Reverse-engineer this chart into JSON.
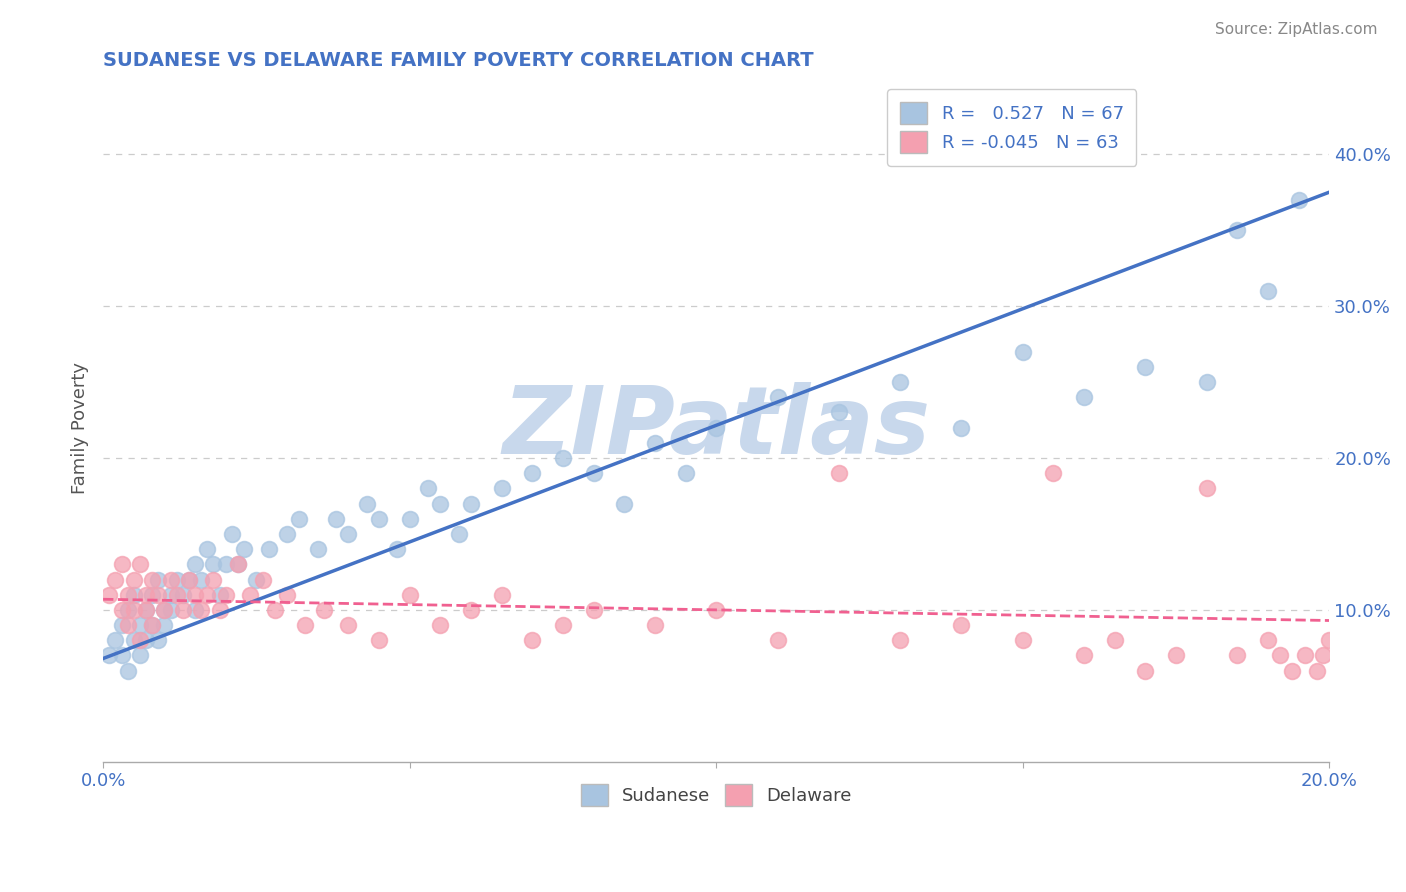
{
  "title": "SUDANESE VS DELAWARE FAMILY POVERTY CORRELATION CHART",
  "source_text": "Source: ZipAtlas.com",
  "ylabel": "Family Poverty",
  "watermark": "ZIPatlas",
  "x_min": 0.0,
  "x_max": 0.2,
  "y_min": 0.0,
  "y_max": 0.44,
  "y_ticks_right": [
    0.1,
    0.2,
    0.3,
    0.4
  ],
  "y_tick_labels_right": [
    "10.0%",
    "20.0%",
    "30.0%",
    "40.0%"
  ],
  "sudanese_color": "#a8c4e0",
  "delaware_color": "#f4a0b0",
  "sudanese_line_color": "#4472c4",
  "delaware_line_color": "#f06090",
  "sudanese_R": 0.527,
  "sudanese_N": 67,
  "delaware_R": -0.045,
  "delaware_N": 63,
  "legend_label_sudanese": "Sudanese",
  "legend_label_delaware": "Delaware",
  "title_color": "#4472c4",
  "source_color": "#888888",
  "grid_color": "#cccccc",
  "watermark_color": "#c8d8ec",
  "sudanese_x": [
    0.001,
    0.002,
    0.003,
    0.003,
    0.004,
    0.004,
    0.005,
    0.005,
    0.006,
    0.006,
    0.007,
    0.007,
    0.008,
    0.008,
    0.009,
    0.009,
    0.01,
    0.01,
    0.011,
    0.011,
    0.012,
    0.013,
    0.014,
    0.015,
    0.015,
    0.016,
    0.017,
    0.018,
    0.019,
    0.02,
    0.021,
    0.022,
    0.023,
    0.025,
    0.027,
    0.03,
    0.032,
    0.035,
    0.038,
    0.04,
    0.043,
    0.045,
    0.048,
    0.05,
    0.053,
    0.055,
    0.058,
    0.06,
    0.065,
    0.07,
    0.075,
    0.08,
    0.085,
    0.09,
    0.095,
    0.1,
    0.11,
    0.12,
    0.13,
    0.14,
    0.15,
    0.16,
    0.17,
    0.18,
    0.185,
    0.19,
    0.195
  ],
  "sudanese_y": [
    0.07,
    0.08,
    0.09,
    0.07,
    0.1,
    0.06,
    0.11,
    0.08,
    0.09,
    0.07,
    0.1,
    0.08,
    0.11,
    0.09,
    0.12,
    0.08,
    0.1,
    0.09,
    0.11,
    0.1,
    0.12,
    0.11,
    0.12,
    0.13,
    0.1,
    0.12,
    0.14,
    0.13,
    0.11,
    0.13,
    0.15,
    0.13,
    0.14,
    0.12,
    0.14,
    0.15,
    0.16,
    0.14,
    0.16,
    0.15,
    0.17,
    0.16,
    0.14,
    0.16,
    0.18,
    0.17,
    0.15,
    0.17,
    0.18,
    0.19,
    0.2,
    0.19,
    0.17,
    0.21,
    0.19,
    0.22,
    0.24,
    0.23,
    0.25,
    0.22,
    0.27,
    0.24,
    0.26,
    0.25,
    0.35,
    0.31,
    0.37
  ],
  "delaware_x": [
    0.001,
    0.002,
    0.003,
    0.003,
    0.004,
    0.004,
    0.005,
    0.005,
    0.006,
    0.006,
    0.007,
    0.007,
    0.008,
    0.008,
    0.009,
    0.01,
    0.011,
    0.012,
    0.013,
    0.014,
    0.015,
    0.016,
    0.017,
    0.018,
    0.019,
    0.02,
    0.022,
    0.024,
    0.026,
    0.028,
    0.03,
    0.033,
    0.036,
    0.04,
    0.045,
    0.05,
    0.055,
    0.06,
    0.065,
    0.07,
    0.075,
    0.08,
    0.09,
    0.1,
    0.11,
    0.12,
    0.13,
    0.14,
    0.15,
    0.155,
    0.16,
    0.165,
    0.17,
    0.175,
    0.18,
    0.185,
    0.19,
    0.192,
    0.194,
    0.196,
    0.198,
    0.199,
    0.2
  ],
  "delaware_y": [
    0.11,
    0.12,
    0.1,
    0.13,
    0.11,
    0.09,
    0.12,
    0.1,
    0.13,
    0.08,
    0.11,
    0.1,
    0.12,
    0.09,
    0.11,
    0.1,
    0.12,
    0.11,
    0.1,
    0.12,
    0.11,
    0.1,
    0.11,
    0.12,
    0.1,
    0.11,
    0.13,
    0.11,
    0.12,
    0.1,
    0.11,
    0.09,
    0.1,
    0.09,
    0.08,
    0.11,
    0.09,
    0.1,
    0.11,
    0.08,
    0.09,
    0.1,
    0.09,
    0.1,
    0.08,
    0.19,
    0.08,
    0.09,
    0.08,
    0.19,
    0.07,
    0.08,
    0.06,
    0.07,
    0.18,
    0.07,
    0.08,
    0.07,
    0.06,
    0.07,
    0.06,
    0.07,
    0.08
  ]
}
